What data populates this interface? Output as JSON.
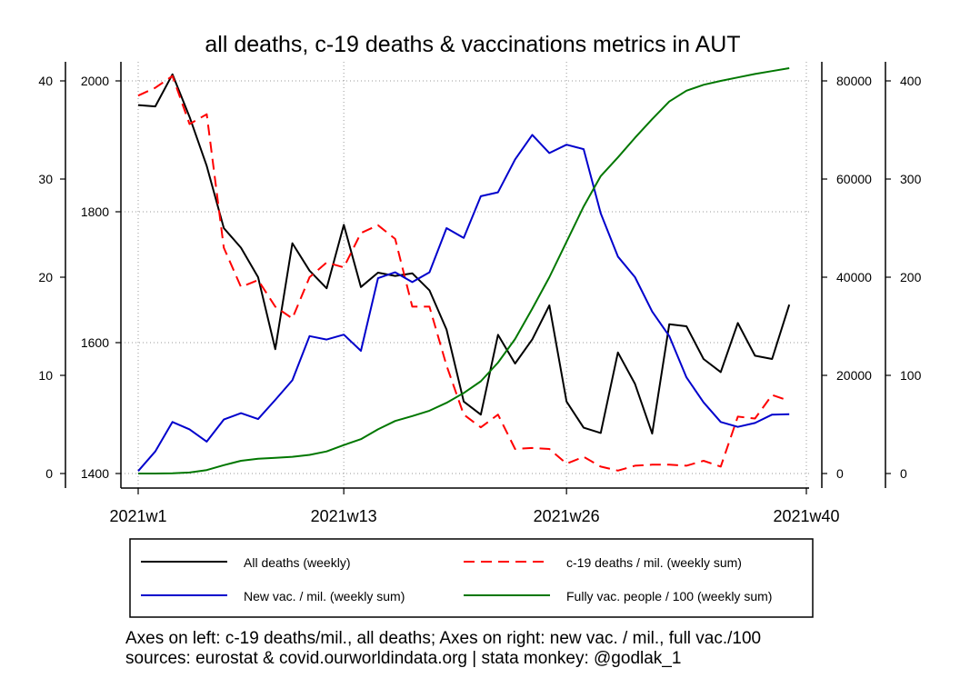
{
  "chart_data": {
    "type": "line",
    "title": "all deaths, c-19 deaths & vaccinations metrics in AUT",
    "x_ticks": [
      "2021w1",
      "2021w13",
      "2021w26",
      "2021w40"
    ],
    "axes": {
      "left_outer": {
        "ticks": [
          "0",
          "10",
          "20",
          "30",
          "40"
        ],
        "range": [
          0,
          40
        ]
      },
      "left_inner": {
        "ticks": [
          "1400",
          "1600",
          "1800",
          "2000"
        ],
        "range": [
          1400,
          2000
        ]
      },
      "right_inner": {
        "ticks": [
          "0",
          "20000",
          "40000",
          "60000",
          "80000"
        ],
        "range": [
          0,
          80000
        ]
      },
      "right_outer": {
        "ticks": [
          "0",
          "100",
          "200",
          "300",
          "400"
        ],
        "range": [
          0,
          400
        ]
      }
    },
    "grid": true,
    "legend_position": "bottom",
    "series": [
      {
        "name": "All deaths (weekly)",
        "axis": "left_inner",
        "color": "#000000",
        "dash": "solid",
        "x": [
          "2021w1",
          "2021w2",
          "2021w3",
          "2021w4",
          "2021w5",
          "2021w6",
          "2021w7",
          "2021w8",
          "2021w9",
          "2021w10",
          "2021w11",
          "2021w12",
          "2021w13",
          "2021w14",
          "2021w15",
          "2021w16",
          "2021w17",
          "2021w18",
          "2021w19",
          "2021w20",
          "2021w21",
          "2021w22",
          "2021w23",
          "2021w24",
          "2021w25",
          "2021w26",
          "2021w27",
          "2021w28",
          "2021w29",
          "2021w30",
          "2021w31",
          "2021w32",
          "2021w33",
          "2021w34",
          "2021w35",
          "2021w36",
          "2021w37",
          "2021w38",
          "2021w39"
        ],
        "values": [
          1963,
          1961,
          2010,
          1945,
          1870,
          1775,
          1745,
          1700,
          1590,
          1752,
          1710,
          1683,
          1780,
          1685,
          1707,
          1702,
          1706,
          1680,
          1620,
          1510,
          1490,
          1612,
          1568,
          1605,
          1657,
          1510,
          1470,
          1462,
          1585,
          1537,
          1461,
          1628,
          1625,
          1575,
          1555,
          1630,
          1580,
          1575,
          1658
        ]
      },
      {
        "name": "c-19 deaths / mil. (weekly sum)",
        "axis": "left_outer",
        "color": "#ff0000",
        "dash": "dashed",
        "x": [
          "2021w1",
          "2021w2",
          "2021w3",
          "2021w4",
          "2021w5",
          "2021w6",
          "2021w7",
          "2021w8",
          "2021w9",
          "2021w10",
          "2021w11",
          "2021w12",
          "2021w13",
          "2021w14",
          "2021w15",
          "2021w16",
          "2021w17",
          "2021w18",
          "2021w19",
          "2021w20",
          "2021w21",
          "2021w22",
          "2021w23",
          "2021w24",
          "2021w25",
          "2021w26",
          "2021w27",
          "2021w28",
          "2021w29",
          "2021w30",
          "2021w31",
          "2021w32",
          "2021w33",
          "2021w34",
          "2021w35",
          "2021w36",
          "2021w37",
          "2021w38",
          "2021w39"
        ],
        "values": [
          38.5,
          39.3,
          40.5,
          35.6,
          36.6,
          23.0,
          19.0,
          19.7,
          17.0,
          15.8,
          20.0,
          21.5,
          21.0,
          24.5,
          25.3,
          23.9,
          17.0,
          17.0,
          11.0,
          6.0,
          4.7,
          6.0,
          2.5,
          2.6,
          2.5,
          1.0,
          1.7,
          0.7,
          0.3,
          0.8,
          0.9,
          0.9,
          0.8,
          1.3,
          0.7,
          5.8,
          5.6,
          8.0,
          7.4
        ]
      },
      {
        "name": "New vac. / mil. (weekly sum)",
        "axis": "right_inner",
        "color": "#0000cc",
        "dash": "solid",
        "x": [
          "2021w1",
          "2021w2",
          "2021w3",
          "2021w4",
          "2021w5",
          "2021w6",
          "2021w7",
          "2021w8",
          "2021w9",
          "2021w10",
          "2021w11",
          "2021w12",
          "2021w13",
          "2021w14",
          "2021w15",
          "2021w16",
          "2021w17",
          "2021w18",
          "2021w19",
          "2021w20",
          "2021w21",
          "2021w22",
          "2021w23",
          "2021w24",
          "2021w25",
          "2021w26",
          "2021w27",
          "2021w28",
          "2021w29",
          "2021w30",
          "2021w31",
          "2021w32",
          "2021w33",
          "2021w34",
          "2021w35",
          "2021w36",
          "2021w37",
          "2021w38",
          "2021w39"
        ],
        "values": [
          500,
          4500,
          10500,
          9000,
          6500,
          11000,
          12300,
          11100,
          15000,
          19000,
          28000,
          27300,
          28300,
          25000,
          39800,
          41000,
          39000,
          41000,
          50000,
          48000,
          56500,
          57300,
          64000,
          69000,
          65300,
          67000,
          66100,
          53000,
          44200,
          40000,
          33000,
          28000,
          19600,
          14500,
          10500,
          9500,
          10300,
          12000,
          12100
        ]
      },
      {
        "name": "Fully vac. people / 100 (weekly sum)",
        "axis": "right_outer",
        "color": "#007700",
        "dash": "solid",
        "x": [
          "2021w1",
          "2021w2",
          "2021w3",
          "2021w4",
          "2021w5",
          "2021w6",
          "2021w7",
          "2021w8",
          "2021w9",
          "2021w10",
          "2021w11",
          "2021w12",
          "2021w13",
          "2021w14",
          "2021w15",
          "2021w16",
          "2021w17",
          "2021w18",
          "2021w19",
          "2021w20",
          "2021w21",
          "2021w22",
          "2021w23",
          "2021w24",
          "2021w25",
          "2021w26",
          "2021w27",
          "2021w28",
          "2021w29",
          "2021w30",
          "2021w31",
          "2021w32",
          "2021w33",
          "2021w34",
          "2021w35",
          "2021w36",
          "2021w37",
          "2021w38",
          "2021w39"
        ],
        "values": [
          0,
          0,
          0.2,
          1,
          3.5,
          8.5,
          13,
          15,
          16,
          17,
          19,
          22.5,
          29,
          35,
          45,
          53.5,
          58.5,
          64,
          72,
          82,
          94,
          113,
          137,
          168,
          200,
          236,
          272,
          303,
          322,
          342,
          361,
          379,
          390,
          396,
          400,
          403.5,
          407,
          410,
          413
        ]
      }
    ],
    "legend": [
      "All deaths (weekly)",
      "c-19 deaths / mil. (weekly sum)",
      "New vac. / mil. (weekly sum)",
      "Fully vac. people / 100 (weekly sum)"
    ]
  },
  "notes": {
    "line1": "Axes on left: c-19 deaths/mil., all deaths; Axes on right: new vac. / mil., full vac./100",
    "line2": "sources: eurostat & covid.ourworldindata.org | stata monkey: @godlak_1"
  }
}
